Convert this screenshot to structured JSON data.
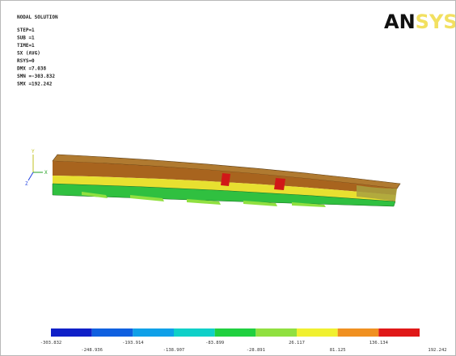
{
  "header": {
    "title": "NODAL SOLUTION",
    "lines": [
      "STEP=1",
      "SUB =1",
      "TIME=1",
      "SX       (AVG)",
      "RSYS=0",
      "DMX =7.038",
      "SMN =-303.832",
      "SMX =192.242"
    ]
  },
  "logo": {
    "dark": "AN",
    "light": "SYS"
  },
  "triad": {
    "y": "Y",
    "z": "Z",
    "x": "X"
  },
  "legend": {
    "colors": [
      "#1020c8",
      "#1060e0",
      "#10a0e8",
      "#10d0c8",
      "#20d040",
      "#90e040",
      "#f0f030",
      "#f09020",
      "#e01818"
    ],
    "labels": [
      "-303.832",
      "-248.936",
      "-193.914",
      "-138.907",
      "-83.899",
      "-28.891",
      "26.117",
      "81.125",
      "136.134",
      "192.242"
    ]
  }
}
